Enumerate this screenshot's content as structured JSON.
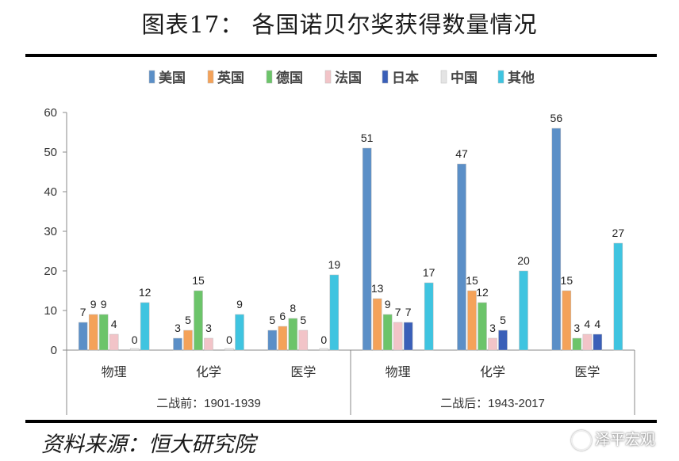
{
  "figure": {
    "title": "图表17： 各国诺贝尔奖获得数量情况",
    "source": "资料来源：恒大研究院",
    "watermark": "泽平宏观"
  },
  "chart_data": {
    "type": "bar",
    "ylim": [
      0,
      60
    ],
    "yticks": [
      0,
      10,
      20,
      30,
      40,
      50,
      60
    ],
    "grid": false,
    "legend_position": "top",
    "series": [
      {
        "name": "美国",
        "color": "#5b8fc7",
        "values": [
          7,
          3,
          5,
          51,
          47,
          56
        ]
      },
      {
        "name": "英国",
        "color": "#f4a259",
        "values": [
          9,
          5,
          6,
          13,
          15,
          15
        ]
      },
      {
        "name": "德国",
        "color": "#6cc46a",
        "values": [
          9,
          15,
          8,
          9,
          12,
          3
        ]
      },
      {
        "name": "法国",
        "color": "#f2c4c8",
        "values": [
          4,
          3,
          5,
          7,
          3,
          4
        ]
      },
      {
        "name": "日本",
        "color": "#3a5fb8",
        "values": [
          null,
          null,
          null,
          7,
          5,
          4
        ]
      },
      {
        "name": "中国",
        "color": "#e4e4e4",
        "values": [
          0,
          0,
          0,
          null,
          null,
          null
        ]
      },
      {
        "name": "其他",
        "color": "#3fc4e0",
        "values": [
          12,
          9,
          19,
          17,
          20,
          27
        ]
      }
    ],
    "value_labels": [
      [
        "7",
        "3",
        "5",
        "51",
        "47",
        "56"
      ],
      [
        "9",
        "5",
        "6",
        "13",
        "15",
        "15"
      ],
      [
        "9",
        "15",
        "8",
        "9",
        "12",
        "3"
      ],
      [
        "4",
        "3",
        "5",
        "7",
        "3",
        "4"
      ],
      [
        "",
        "",
        "",
        "7",
        "5",
        "4"
      ],
      [
        "0",
        "0",
        "0",
        "",
        "",
        ""
      ],
      [
        "12",
        "9",
        "19",
        "17",
        "20",
        "27"
      ]
    ],
    "categories": [
      "物理",
      "化学",
      "医学",
      "物理",
      "化学",
      "医学"
    ],
    "groups": [
      {
        "label": "二战前：1901-1939",
        "span": [
          0,
          2
        ]
      },
      {
        "label": "二战后：1943-2017",
        "span": [
          3,
          5
        ]
      }
    ]
  }
}
